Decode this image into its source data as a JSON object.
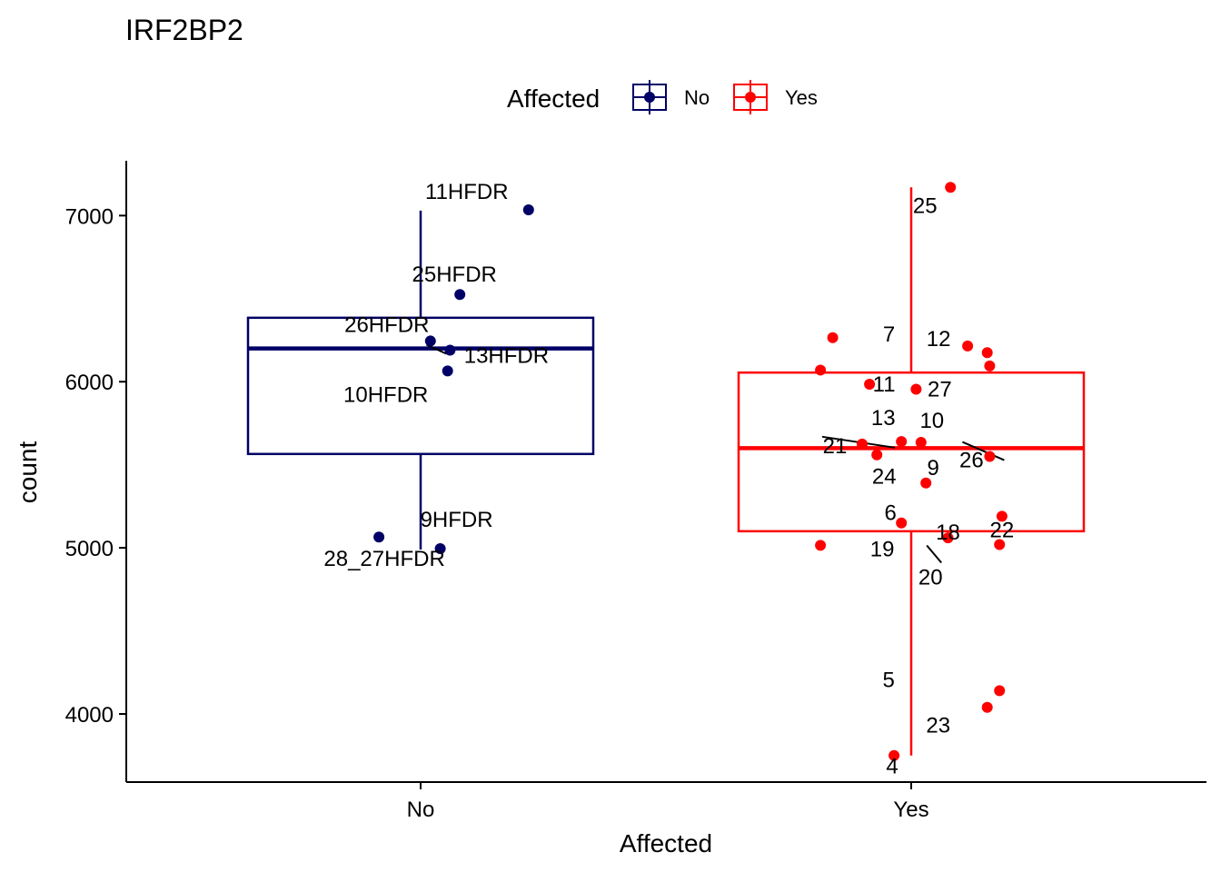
{
  "chart_data": {
    "type": "box",
    "title": "IRF2BP2",
    "xlabel": "Affected",
    "ylabel": "count",
    "categories": [
      "No",
      "Yes"
    ],
    "ylim": [
      3590,
      7330
    ],
    "yticks": [
      4000,
      5000,
      6000,
      7000
    ],
    "grid": false,
    "legend": {
      "title": "Affected",
      "position": "top",
      "entries": [
        {
          "label": "No",
          "color": "#000066"
        },
        {
          "label": "Yes",
          "color": "#ff0000"
        }
      ]
    },
    "series": [
      {
        "name": "No",
        "color": "#000066",
        "box": {
          "whisker_low": 4990,
          "q1": 5565,
          "median": 6200,
          "q3": 6385,
          "whisker_high": 7030
        },
        "points": [
          {
            "x_offset": 0.22,
            "y": 7035,
            "label": "11HFDR"
          },
          {
            "x_offset": 0.08,
            "y": 6525,
            "label": "25HFDR"
          },
          {
            "x_offset": 0.02,
            "y": 6245,
            "label": "26HFDR"
          },
          {
            "x_offset": 0.06,
            "y": 6190,
            "label": "13HFDR"
          },
          {
            "x_offset": 0.055,
            "y": 6065,
            "label": "10HFDR"
          },
          {
            "x_offset": 0.04,
            "y": 4995,
            "label": "9HFDR"
          },
          {
            "x_offset": -0.085,
            "y": 5065,
            "label": "28_27HFDR"
          }
        ]
      },
      {
        "name": "Yes",
        "color": "#ff0000",
        "box": {
          "whisker_low": 3750,
          "q1": 5100,
          "median": 5600,
          "q3": 6055,
          "whisker_high": 7170
        },
        "points": [
          {
            "x_offset": 0.08,
            "y": 7170,
            "label": "25"
          },
          {
            "x_offset": -0.16,
            "y": 6265,
            "label": "7"
          },
          {
            "x_offset": 0.115,
            "y": 6215,
            "label": "12"
          },
          {
            "x_offset": 0.155,
            "y": 6175,
            "label": ""
          },
          {
            "x_offset": 0.16,
            "y": 6095,
            "label": ""
          },
          {
            "x_offset": -0.185,
            "y": 6070,
            "label": ""
          },
          {
            "x_offset": -0.085,
            "y": 5985,
            "label": "11"
          },
          {
            "x_offset": 0.01,
            "y": 5955,
            "label": "27"
          },
          {
            "x_offset": -0.02,
            "y": 5640,
            "label": "13"
          },
          {
            "x_offset": 0.02,
            "y": 5635,
            "label": "10"
          },
          {
            "x_offset": -0.1,
            "y": 5625,
            "label": "21"
          },
          {
            "x_offset": -0.07,
            "y": 5560,
            "label": "24"
          },
          {
            "x_offset": 0.16,
            "y": 5550,
            "label": "26"
          },
          {
            "x_offset": 0.03,
            "y": 5390,
            "label": "9"
          },
          {
            "x_offset": 0.185,
            "y": 5190,
            "label": "22"
          },
          {
            "x_offset": -0.02,
            "y": 5150,
            "label": "6"
          },
          {
            "x_offset": 0.075,
            "y": 5060,
            "label": "18"
          },
          {
            "x_offset": -0.185,
            "y": 5015,
            "label": "19"
          },
          {
            "x_offset": 0.18,
            "y": 5020,
            "label": "20"
          },
          {
            "x_offset": 0.18,
            "y": 4140,
            "label": "5"
          },
          {
            "x_offset": 0.155,
            "y": 4040,
            "label": "23"
          },
          {
            "x_offset": -0.035,
            "y": 3750,
            "label": "4"
          }
        ]
      }
    ]
  }
}
